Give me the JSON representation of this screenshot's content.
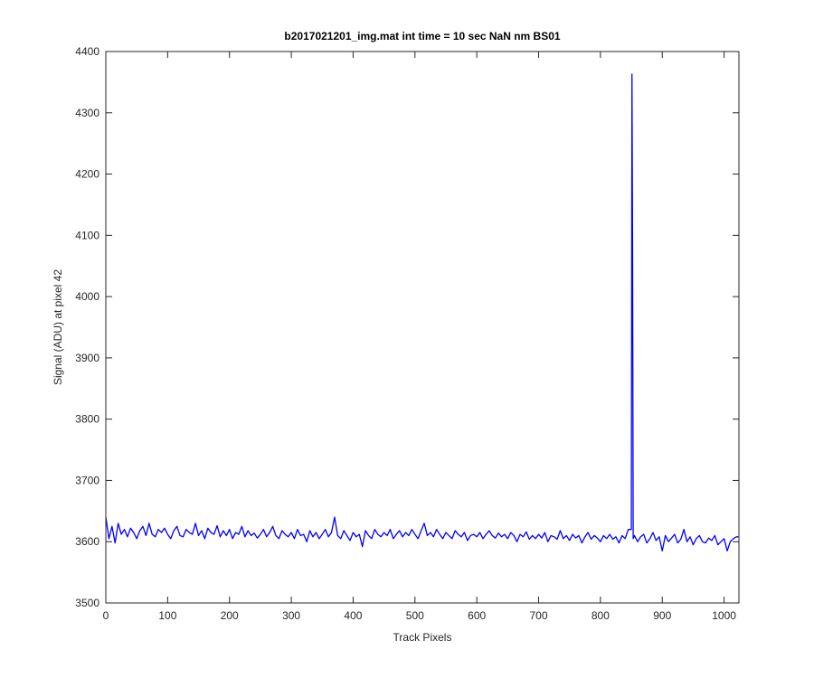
{
  "chart_data": {
    "type": "line",
    "title": "b2017021201_img.mat int time = 10 sec  NaN nm BS01",
    "x_label": "Track Pixels",
    "y_label": "Signal (ADU) at pixel 42",
    "xlim": [
      0,
      1024
    ],
    "ylim": [
      3500,
      4400
    ],
    "xticks": [
      0,
      100,
      200,
      300,
      400,
      500,
      600,
      700,
      800,
      900,
      1000
    ],
    "yticks": [
      3500,
      3600,
      3700,
      3800,
      3900,
      4000,
      4100,
      4200,
      4300,
      4400
    ],
    "x": [
      0,
      5,
      10,
      15,
      20,
      25,
      30,
      35,
      40,
      45,
      50,
      55,
      60,
      65,
      70,
      75,
      80,
      85,
      90,
      95,
      100,
      105,
      110,
      115,
      120,
      125,
      130,
      135,
      140,
      145,
      150,
      155,
      160,
      165,
      170,
      175,
      180,
      185,
      190,
      195,
      200,
      205,
      210,
      215,
      220,
      225,
      230,
      235,
      240,
      245,
      250,
      255,
      260,
      265,
      270,
      275,
      280,
      285,
      290,
      295,
      300,
      305,
      310,
      315,
      320,
      325,
      330,
      335,
      340,
      345,
      350,
      355,
      360,
      365,
      370,
      375,
      380,
      385,
      390,
      395,
      400,
      405,
      410,
      415,
      420,
      425,
      430,
      435,
      440,
      445,
      450,
      455,
      460,
      465,
      470,
      475,
      480,
      485,
      490,
      495,
      500,
      505,
      510,
      515,
      520,
      525,
      530,
      535,
      540,
      545,
      550,
      555,
      560,
      565,
      570,
      575,
      580,
      585,
      590,
      595,
      600,
      605,
      610,
      615,
      620,
      625,
      630,
      635,
      640,
      645,
      650,
      655,
      660,
      665,
      670,
      675,
      680,
      685,
      690,
      695,
      700,
      705,
      710,
      715,
      720,
      725,
      730,
      735,
      740,
      745,
      750,
      755,
      760,
      765,
      770,
      775,
      780,
      785,
      790,
      795,
      800,
      805,
      810,
      815,
      820,
      825,
      830,
      835,
      840,
      845,
      850,
      851,
      852,
      853,
      855,
      860,
      865,
      870,
      875,
      880,
      885,
      890,
      895,
      900,
      905,
      910,
      915,
      920,
      925,
      930,
      935,
      940,
      945,
      950,
      955,
      960,
      965,
      970,
      975,
      980,
      985,
      990,
      995,
      1000,
      1005,
      1010,
      1015,
      1020,
      1023
    ],
    "series": [
      {
        "color": "#0000ff",
        "values": [
          3640,
          3605,
          3625,
          3598,
          3630,
          3612,
          3620,
          3608,
          3622,
          3615,
          3605,
          3618,
          3625,
          3610,
          3630,
          3612,
          3608,
          3620,
          3615,
          3622,
          3612,
          3605,
          3618,
          3625,
          3610,
          3608,
          3620,
          3615,
          3612,
          3630,
          3610,
          3618,
          3605,
          3622,
          3615,
          3612,
          3626,
          3608,
          3618,
          3610,
          3620,
          3605,
          3615,
          3612,
          3625,
          3608,
          3618,
          3610,
          3614,
          3606,
          3612,
          3620,
          3608,
          3615,
          3625,
          3610,
          3605,
          3618,
          3612,
          3608,
          3615,
          3605,
          3620,
          3610,
          3612,
          3600,
          3618,
          3608,
          3615,
          3605,
          3612,
          3620,
          3608,
          3615,
          3640,
          3610,
          3605,
          3618,
          3610,
          3602,
          3615,
          3608,
          3612,
          3592,
          3618,
          3610,
          3605,
          3620,
          3612,
          3608,
          3615,
          3610,
          3620,
          3605,
          3612,
          3618,
          3608,
          3615,
          3610,
          3620,
          3612,
          3605,
          3618,
          3630,
          3610,
          3615,
          3608,
          3620,
          3612,
          3605,
          3615,
          3610,
          3605,
          3618,
          3612,
          3608,
          3615,
          3602,
          3610,
          3612,
          3608,
          3615,
          3605,
          3612,
          3618,
          3610,
          3606,
          3614,
          3608,
          3612,
          3605,
          3615,
          3610,
          3600,
          3612,
          3608,
          3616,
          3604,
          3610,
          3605,
          3612,
          3606,
          3615,
          3600,
          3610,
          3608,
          3604,
          3618,
          3605,
          3610,
          3602,
          3612,
          3606,
          3610,
          3598,
          3608,
          3615,
          3604,
          3610,
          3606,
          3600,
          3610,
          3605,
          3612,
          3604,
          3608,
          3598,
          3610,
          3605,
          3620,
          3620,
          4363,
          4080,
          3605,
          3610,
          3600,
          3608,
          3612,
          3598,
          3605,
          3615,
          3602,
          3608,
          3585,
          3610,
          3600,
          3606,
          3612,
          3598,
          3604,
          3620,
          3600,
          3608,
          3595,
          3605,
          3610,
          3600,
          3598,
          3606,
          3602,
          3610,
          3595,
          3600,
          3605,
          3585,
          3600,
          3605,
          3608,
          3608
        ]
      }
    ]
  }
}
